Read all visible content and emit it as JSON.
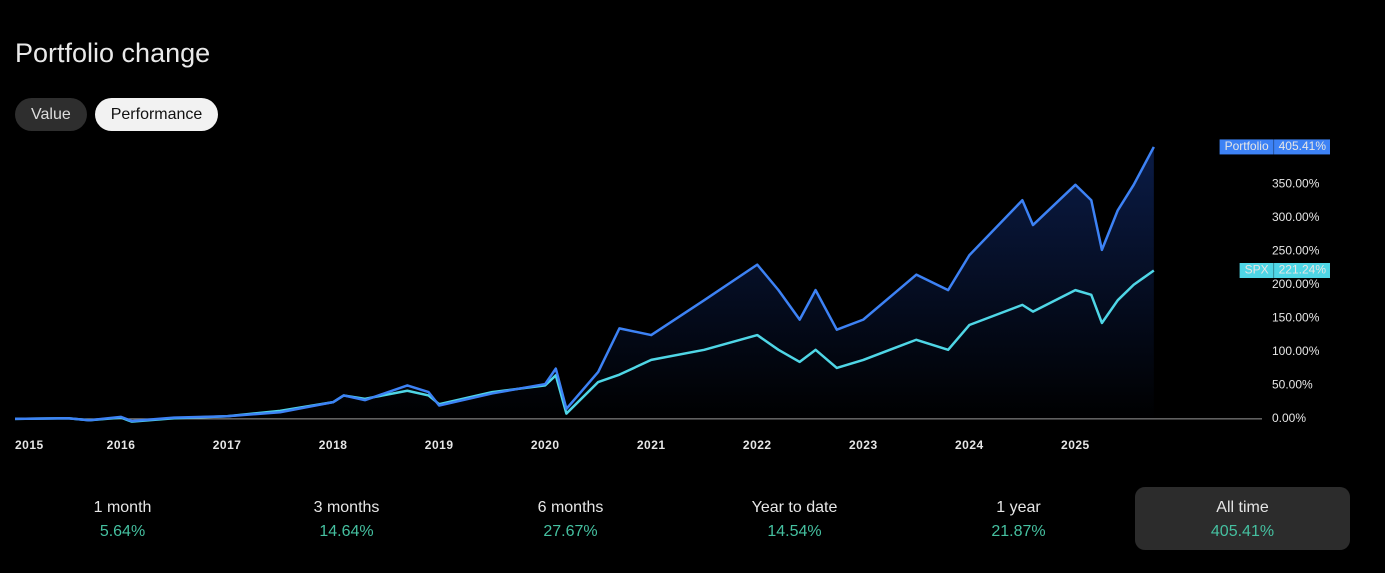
{
  "header": {
    "title": "Portfolio change"
  },
  "toggle": {
    "options": [
      "Value",
      "Performance"
    ],
    "selected": "Performance"
  },
  "chart_data": {
    "type": "line",
    "x": [
      2015.0,
      2015.5,
      2015.7,
      2016.0,
      2016.1,
      2016.5,
      2017.0,
      2017.5,
      2018.0,
      2018.1,
      2018.3,
      2018.7,
      2018.9,
      2019.0,
      2019.5,
      2020.0,
      2020.1,
      2020.2,
      2020.5,
      2020.7,
      2021.0,
      2021.5,
      2022.0,
      2022.2,
      2022.4,
      2022.55,
      2022.75,
      2023.0,
      2023.5,
      2023.8,
      2024.0,
      2024.5,
      2024.6,
      2025.0,
      2025.15,
      2025.25,
      2025.4,
      2025.55,
      2025.74
    ],
    "series": [
      {
        "name": "Portfolio",
        "color": "#3d82f5",
        "end_label": "405.41%",
        "values": [
          0,
          1,
          -2,
          3,
          -3,
          2,
          4,
          10,
          25,
          35,
          28,
          50,
          40,
          20,
          38,
          52,
          75,
          15,
          70,
          135,
          125,
          177,
          230,
          192,
          148,
          192,
          133,
          148,
          215,
          192,
          244,
          326,
          289,
          349,
          326,
          252,
          311,
          349,
          405.41
        ]
      },
      {
        "name": "SPX",
        "color": "#4fd6e6",
        "end_label": "221.24%",
        "values": [
          0,
          1,
          -2,
          2,
          -4,
          1,
          4,
          12,
          25,
          35,
          30,
          42,
          35,
          22,
          40,
          50,
          65,
          8,
          55,
          66,
          88,
          103,
          125,
          103,
          85,
          103,
          76,
          88,
          118,
          103,
          140,
          170,
          160,
          192,
          185,
          143,
          177,
          200,
          221.24
        ]
      }
    ],
    "xlim": [
      2015,
      2026.76
    ],
    "xticks": [
      2015,
      2016,
      2017,
      2018,
      2019,
      2020,
      2021,
      2022,
      2023,
      2024,
      2025
    ],
    "ylim": [
      -15,
      415
    ],
    "yticks": [
      {
        "value": 0,
        "label": "0.00%"
      },
      {
        "value": 50,
        "label": "50.00%"
      },
      {
        "value": 100,
        "label": "100.00%"
      },
      {
        "value": 150,
        "label": "150.00%"
      },
      {
        "value": 200,
        "label": "200.00%"
      },
      {
        "value": 250,
        "label": "250.00%"
      },
      {
        "value": 300,
        "label": "300.00%"
      },
      {
        "value": 350,
        "label": "350.00%"
      }
    ]
  },
  "stats": {
    "periods": [
      "1 month",
      "3 months",
      "6 months",
      "Year to date",
      "1 year",
      "All time"
    ],
    "values": [
      5.64,
      14.64,
      27.67,
      14.54,
      21.87,
      405.41
    ],
    "value_labels": [
      "5.64%",
      "14.64%",
      "27.67%",
      "14.54%",
      "21.87%",
      "405.41%"
    ],
    "selected": "All time"
  }
}
